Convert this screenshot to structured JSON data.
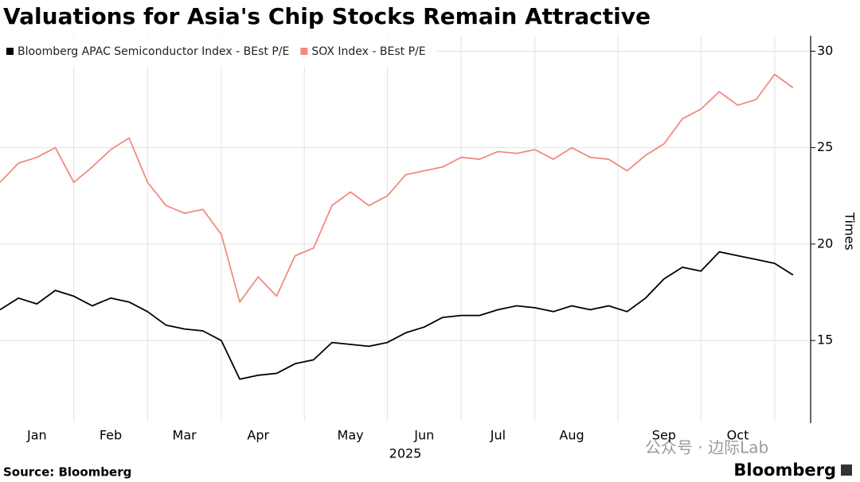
{
  "chart_data": {
    "type": "line",
    "title": "Valuations for Asia's Chip Stocks Remain Attractive",
    "xlabel": "2025",
    "ylabel": "Times",
    "source": "Source: Bloomberg",
    "brand": "Bloomberg",
    "annotations": [
      "公众号 · 边际Lab"
    ],
    "categories": [
      null,
      null,
      "Jan",
      null,
      null,
      null,
      "Feb",
      null,
      null,
      null,
      "Mar",
      null,
      null,
      null,
      "Apr",
      null,
      null,
      null,
      null,
      "May",
      null,
      null,
      null,
      "Jun",
      null,
      null,
      null,
      "Jul",
      null,
      null,
      null,
      "Aug",
      null,
      null,
      null,
      null,
      "Sep",
      null,
      null,
      null,
      "Oct",
      null,
      null,
      null
    ],
    "series": [
      {
        "name": "Bloomberg APAC Semiconductor Index - BEst P/E",
        "color": "#000000",
        "values": [
          16.6,
          17.2,
          16.9,
          17.6,
          17.3,
          16.8,
          17.2,
          17.0,
          16.5,
          15.8,
          15.6,
          15.5,
          15.0,
          13.0,
          13.2,
          13.3,
          13.8,
          14.0,
          14.9,
          14.8,
          14.7,
          14.9,
          15.4,
          15.7,
          16.2,
          16.3,
          16.3,
          16.6,
          16.8,
          16.7,
          16.5,
          16.8,
          16.6,
          16.8,
          16.5,
          17.2,
          18.2,
          18.8,
          18.6,
          19.6,
          19.4,
          19.2,
          19.0,
          18.4
        ]
      },
      {
        "name": "SOX Index - BEst P/E",
        "color": "#f28a80",
        "values": [
          23.2,
          24.2,
          24.5,
          25.0,
          23.2,
          24.0,
          24.9,
          25.5,
          23.2,
          22.0,
          21.6,
          21.8,
          20.5,
          17.0,
          18.3,
          17.3,
          19.4,
          19.8,
          22.0,
          22.7,
          22.0,
          22.5,
          23.6,
          23.8,
          24.0,
          24.5,
          24.4,
          24.8,
          24.7,
          24.9,
          24.4,
          25.0,
          24.5,
          24.4,
          23.8,
          24.6,
          25.2,
          26.5,
          27.0,
          27.9,
          27.2,
          27.5,
          28.8,
          28.1
        ]
      }
    ],
    "ylim": [
      10.8,
      30.8
    ],
    "yticks": [
      15,
      20,
      25,
      30
    ],
    "grid": true
  }
}
